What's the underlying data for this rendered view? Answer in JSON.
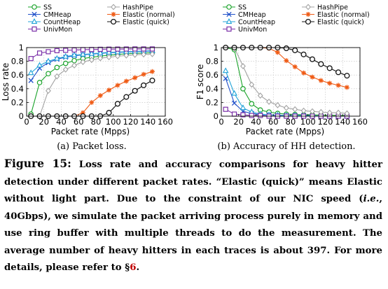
{
  "chart_data": [
    {
      "type": "line",
      "title": "",
      "xlabel": "Packet rate (Mpps)",
      "ylabel": "Loss rate",
      "xlim": [
        0,
        160
      ],
      "ylim": [
        0,
        1
      ],
      "xticks": [
        "0",
        "20",
        "40",
        "60",
        "80",
        "100",
        "120",
        "140",
        "160"
      ],
      "yticks": [
        "0",
        "0.2",
        "0.4",
        "0.6",
        "0.8",
        "1"
      ],
      "grid": true,
      "legend": "top",
      "subcaption": "(a)  Packet loss.",
      "x": [
        5,
        15,
        25,
        35,
        45,
        55,
        65,
        75,
        85,
        95,
        105,
        115,
        125,
        135,
        145
      ],
      "series": [
        {
          "name": "SS",
          "color": "#1aa32a",
          "marker": "circle",
          "values": [
            0.03,
            0.49,
            0.62,
            0.71,
            0.77,
            0.81,
            0.84,
            0.86,
            0.875,
            0.89,
            0.9,
            0.91,
            0.915,
            0.92,
            0.925
          ]
        },
        {
          "name": "CMHeap",
          "color": "#1f4fc9",
          "marker": "x",
          "values": [
            0.52,
            0.7,
            0.78,
            0.83,
            0.86,
            0.88,
            0.895,
            0.905,
            0.915,
            0.925,
            0.93,
            0.935,
            0.94,
            0.945,
            0.95
          ]
        },
        {
          "name": "CountHeap",
          "color": "#20a3d8",
          "marker": "triangle",
          "values": [
            0.63,
            0.74,
            0.8,
            0.84,
            0.87,
            0.89,
            0.9,
            0.91,
            0.92,
            0.93,
            0.935,
            0.94,
            0.945,
            0.95,
            0.955
          ]
        },
        {
          "name": "UnivMon",
          "color": "#7a2fa8",
          "marker": "square",
          "values": [
            0.84,
            0.92,
            0.94,
            0.955,
            0.96,
            0.965,
            0.97,
            0.972,
            0.975,
            0.977,
            0.978,
            0.979,
            0.98,
            0.98,
            0.98
          ]
        },
        {
          "name": "HashPipe",
          "color": "#a3a3a3",
          "marker": "diamond",
          "values": [
            0.0,
            0.0,
            0.37,
            0.58,
            0.68,
            0.74,
            0.79,
            0.82,
            0.845,
            0.86,
            0.875,
            0.885,
            0.895,
            0.9,
            0.905
          ]
        },
        {
          "name": "Elastic (normal)",
          "color": "#ef5a14",
          "marker": "asterisk",
          "values": [
            0.0,
            0.0,
            0.0,
            0.0,
            0.0,
            0.0,
            0.05,
            0.2,
            0.3,
            0.38,
            0.45,
            0.51,
            0.56,
            0.61,
            0.65
          ]
        },
        {
          "name": "Elastic (quick)",
          "color": "#111111",
          "marker": "circle-open",
          "values": [
            0.0,
            0.0,
            0.0,
            0.0,
            0.0,
            0.0,
            0.0,
            0.0,
            0.0,
            0.05,
            0.18,
            0.28,
            0.37,
            0.45,
            0.52
          ]
        }
      ]
    },
    {
      "type": "line",
      "title": "",
      "xlabel": "Packet rate (Mpps)",
      "ylabel": "F1 score",
      "xlim": [
        0,
        160
      ],
      "ylim": [
        0,
        1
      ],
      "xticks": [
        "0",
        "20",
        "40",
        "60",
        "80",
        "100",
        "120",
        "140",
        "160"
      ],
      "yticks": [
        "0",
        "0.2",
        "0.4",
        "0.6",
        "0.8",
        "1"
      ],
      "grid": true,
      "legend": "top",
      "subcaption": "(b)  Accuracy of HH detection.",
      "x": [
        5,
        15,
        25,
        35,
        45,
        55,
        65,
        75,
        85,
        95,
        105,
        115,
        125,
        135,
        145
      ],
      "series": [
        {
          "name": "SS",
          "color": "#1aa32a",
          "marker": "circle",
          "values": [
            1.0,
            0.97,
            0.4,
            0.18,
            0.09,
            0.06,
            0.04,
            0.03,
            0.025,
            0.02,
            0.02,
            0.015,
            0.015,
            0.01,
            0.01
          ]
        },
        {
          "name": "CMHeap",
          "color": "#1f4fc9",
          "marker": "x",
          "values": [
            0.55,
            0.19,
            0.07,
            0.04,
            0.02,
            0.02,
            0.01,
            0.01,
            0.01,
            0.01,
            0.0,
            0.0,
            0.0,
            0.0,
            0.0
          ]
        },
        {
          "name": "CountHeap",
          "color": "#20a3d8",
          "marker": "triangle",
          "values": [
            0.66,
            0.33,
            0.12,
            0.06,
            0.03,
            0.02,
            0.015,
            0.01,
            0.01,
            0.01,
            0.01,
            0.0,
            0.0,
            0.0,
            0.0
          ]
        },
        {
          "name": "UnivMon",
          "color": "#7a2fa8",
          "marker": "square",
          "values": [
            0.1,
            0.03,
            0.02,
            0.01,
            0.01,
            0.0,
            0.0,
            0.0,
            0.0,
            0.0,
            0.0,
            0.0,
            0.0,
            0.0,
            0.0
          ]
        },
        {
          "name": "HashPipe",
          "color": "#a3a3a3",
          "marker": "diamond",
          "values": [
            1.0,
            1.0,
            0.73,
            0.46,
            0.3,
            0.21,
            0.16,
            0.12,
            0.1,
            0.08,
            0.07,
            0.06,
            0.05,
            0.05,
            0.04
          ]
        },
        {
          "name": "Elastic (normal)",
          "color": "#ef5a14",
          "marker": "asterisk",
          "values": [
            1.0,
            1.0,
            1.0,
            1.0,
            1.0,
            0.99,
            0.93,
            0.81,
            0.72,
            0.63,
            0.57,
            0.52,
            0.48,
            0.45,
            0.42
          ]
        },
        {
          "name": "Elastic (quick)",
          "color": "#111111",
          "marker": "circle-open",
          "values": [
            1.0,
            1.0,
            1.0,
            1.0,
            1.0,
            1.0,
            1.0,
            0.99,
            0.96,
            0.9,
            0.83,
            0.76,
            0.7,
            0.64,
            0.59
          ]
        }
      ]
    }
  ],
  "caption": {
    "label": "Figure 15:",
    "text_before_ref": "Loss rate and accuracy comparisons for heavy hitter detection under different packet rates. “Elastic (quick)” means Elastic without light part. Due to the constraint of our NIC speed (",
    "ie": "i.e.",
    "text_middle": ", 40Gbps), we simulate the packet arriving process purely in memory and use ring buffer with multiple threads to do the measurement. The average number of heavy hitters in each traces is about 397. For more details, please refer to §",
    "ref": "6",
    "text_after_ref": "."
  }
}
